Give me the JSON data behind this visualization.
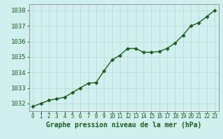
{
  "x": [
    0,
    1,
    2,
    3,
    4,
    5,
    6,
    7,
    8,
    9,
    10,
    11,
    12,
    13,
    14,
    15,
    16,
    17,
    18,
    19,
    20,
    21,
    22,
    23
  ],
  "y": [
    1031.8,
    1032.0,
    1032.2,
    1032.3,
    1032.4,
    1032.7,
    1033.0,
    1033.3,
    1033.35,
    1034.1,
    1034.8,
    1035.1,
    1035.55,
    1035.55,
    1035.3,
    1035.3,
    1035.35,
    1035.55,
    1035.9,
    1036.4,
    1037.0,
    1037.2,
    1037.6,
    1038.0
  ],
  "line_color": "#1a5e1a",
  "marker": "D",
  "marker_size": 2.5,
  "bg_color": "#cff0ee",
  "grid_color": "#c0d8d8",
  "title": "Graphe pression niveau de la mer (hPa)",
  "ylim": [
    1031.5,
    1038.4
  ],
  "xlim": [
    -0.5,
    23.5
  ],
  "yticks": [
    1032,
    1033,
    1034,
    1035,
    1036,
    1037,
    1038
  ],
  "xtick_labels": [
    "0",
    "1",
    "2",
    "3",
    "4",
    "5",
    "6",
    "7",
    "8",
    "9",
    "10",
    "11",
    "12",
    "13",
    "14",
    "15",
    "16",
    "17",
    "18",
    "19",
    "20",
    "21",
    "22",
    "23"
  ],
  "axis_color": "#888888",
  "title_color": "#1a5e1a",
  "title_fontsize": 7.0,
  "ytick_fontsize": 6.5,
  "xtick_fontsize": 5.5,
  "tick_color": "#1a5e1a",
  "linewidth": 1.0
}
